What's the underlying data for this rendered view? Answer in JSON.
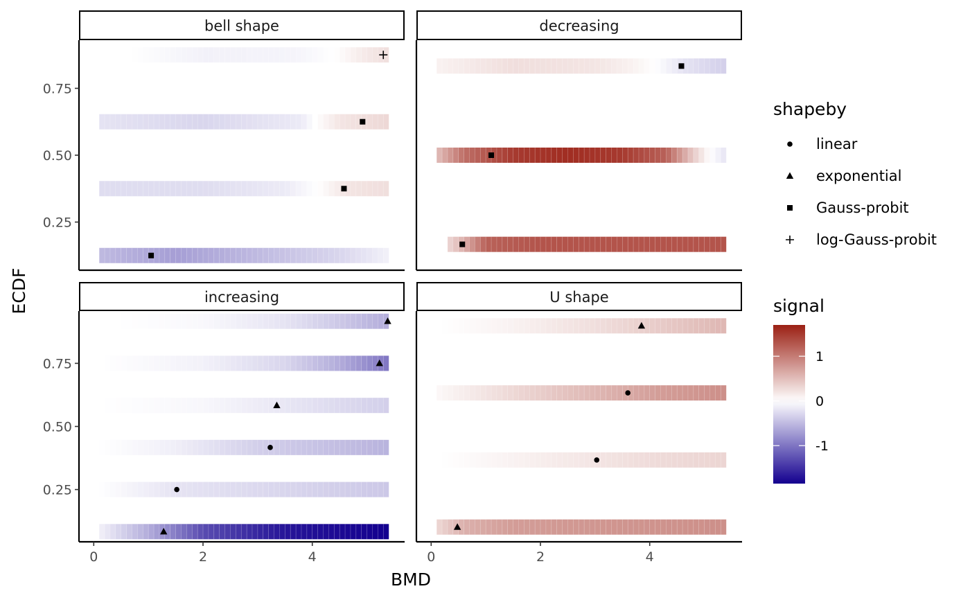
{
  "chart_data": {
    "type": "heatmap",
    "xlabel": "BMD",
    "ylabel": "ECDF",
    "xlim": [
      -0.27,
      5.69
    ],
    "x_ticks": [
      0,
      2,
      4
    ],
    "x_tick_labels": [
      "0",
      "2",
      "4"
    ],
    "y_ticks": [
      0.25,
      0.5,
      0.75
    ],
    "y_tick_labels": [
      "0.25",
      "0.50",
      "0.75"
    ],
    "grid": false,
    "panels": [
      {
        "title": "bell shape",
        "ylim": [
          0.07,
          0.93
        ],
        "rows": [
          {
            "ecdf": 0.125,
            "bmd": 1.05,
            "shape": "Gauss-probit",
            "x_start": 0.1,
            "x_end": 5.4,
            "signal": [
              [
                0.1,
                -0.5
              ],
              [
                1.5,
                -0.7
              ],
              [
                3.0,
                -0.5
              ],
              [
                4.5,
                -0.3
              ],
              [
                5.4,
                -0.1
              ]
            ]
          },
          {
            "ecdf": 0.375,
            "bmd": 4.58,
            "shape": "Gauss-probit",
            "x_start": 0.1,
            "x_end": 5.4,
            "signal": [
              [
                0.1,
                -0.25
              ],
              [
                2.0,
                -0.25
              ],
              [
                3.5,
                -0.15
              ],
              [
                4.1,
                0.0
              ],
              [
                4.6,
                0.2
              ],
              [
                5.4,
                0.25
              ]
            ]
          },
          {
            "ecdf": 0.625,
            "bmd": 4.92,
            "shape": "Gauss-probit",
            "x_start": 0.1,
            "x_end": 5.4,
            "signal": [
              [
                0.1,
                -0.2
              ],
              [
                2.0,
                -0.3
              ],
              [
                3.8,
                -0.15
              ],
              [
                4.05,
                0.0
              ],
              [
                4.5,
                0.2
              ],
              [
                5.4,
                0.3
              ]
            ]
          },
          {
            "ecdf": 0.875,
            "bmd": 5.3,
            "shape": "log-Gauss-probit",
            "x_start": 0.6,
            "x_end": 5.4,
            "signal": [
              [
                0.6,
                0.0
              ],
              [
                2.0,
                -0.1
              ],
              [
                3.7,
                -0.08
              ],
              [
                4.4,
                0.0
              ],
              [
                4.9,
                0.15
              ],
              [
                5.4,
                0.25
              ]
            ]
          }
        ]
      },
      {
        "title": "decreasing",
        "ylim": [
          0.07,
          0.93
        ],
        "rows": [
          {
            "ecdf": 0.1667,
            "bmd": 0.57,
            "shape": "Gauss-probit",
            "x_start": 0.3,
            "x_end": 5.4,
            "signal": [
              [
                0.3,
                0.3
              ],
              [
                0.6,
                0.6
              ],
              [
                1.0,
                1.2
              ],
              [
                2.0,
                1.3
              ],
              [
                3.5,
                1.3
              ],
              [
                5.4,
                1.3
              ]
            ]
          },
          {
            "ecdf": 0.5,
            "bmd": 1.1,
            "shape": "Gauss-probit",
            "x_start": 0.1,
            "x_end": 5.4,
            "signal": [
              [
                0.1,
                0.5
              ],
              [
                0.6,
                1.1
              ],
              [
                1.5,
                1.5
              ],
              [
                2.5,
                1.6
              ],
              [
                3.5,
                1.5
              ],
              [
                4.3,
                1.2
              ],
              [
                4.8,
                0.4
              ],
              [
                5.1,
                0.0
              ],
              [
                5.4,
                -0.2
              ]
            ]
          },
          {
            "ecdf": 0.8333,
            "bmd": 4.58,
            "shape": "Gauss-probit",
            "x_start": 0.1,
            "x_end": 5.4,
            "signal": [
              [
                0.1,
                0.1
              ],
              [
                1.5,
                0.25
              ],
              [
                3.0,
                0.2
              ],
              [
                3.7,
                0.1
              ],
              [
                4.1,
                0.0
              ],
              [
                4.6,
                -0.2
              ],
              [
                5.4,
                -0.35
              ]
            ]
          }
        ]
      },
      {
        "title": "increasing",
        "ylim": [
          0.043,
          0.957
        ],
        "rows": [
          {
            "ecdf": 0.0833,
            "bmd": 1.28,
            "shape": "exponential",
            "x_start": 0.1,
            "x_end": 5.4,
            "signal": [
              [
                0.1,
                -0.1
              ],
              [
                1.0,
                -0.6
              ],
              [
                2.0,
                -1.3
              ],
              [
                3.5,
                -1.7
              ],
              [
                5.4,
                -1.85
              ]
            ]
          },
          {
            "ecdf": 0.25,
            "bmd": 1.52,
            "shape": "linear",
            "x_start": 0.1,
            "x_end": 5.4,
            "signal": [
              [
                0.1,
                0.0
              ],
              [
                1.5,
                -0.2
              ],
              [
                3.5,
                -0.3
              ],
              [
                5.4,
                -0.4
              ]
            ]
          },
          {
            "ecdf": 0.4167,
            "bmd": 3.23,
            "shape": "linear",
            "x_start": 0.1,
            "x_end": 5.4,
            "signal": [
              [
                0.1,
                0.0
              ],
              [
                1.5,
                -0.12
              ],
              [
                3.0,
                -0.35
              ],
              [
                5.4,
                -0.55
              ]
            ]
          },
          {
            "ecdf": 0.5833,
            "bmd": 3.35,
            "shape": "exponential",
            "x_start": 0.1,
            "x_end": 5.4,
            "signal": [
              [
                0.1,
                0.0
              ],
              [
                2.0,
                -0.06
              ],
              [
                3.5,
                -0.18
              ],
              [
                5.4,
                -0.35
              ]
            ]
          },
          {
            "ecdf": 0.75,
            "bmd": 5.23,
            "shape": "exponential",
            "x_start": 0.1,
            "x_end": 5.4,
            "signal": [
              [
                0.1,
                0.0
              ],
              [
                2.0,
                -0.1
              ],
              [
                3.5,
                -0.3
              ],
              [
                4.5,
                -0.6
              ],
              [
                5.4,
                -1.0
              ]
            ]
          },
          {
            "ecdf": 0.9167,
            "bmd": 5.38,
            "shape": "exponential",
            "x_start": 0.4,
            "x_end": 5.4,
            "signal": [
              [
                0.4,
                0.0
              ],
              [
                2.0,
                -0.05
              ],
              [
                3.5,
                -0.2
              ],
              [
                4.5,
                -0.4
              ],
              [
                5.4,
                -0.6
              ]
            ]
          }
        ]
      },
      {
        "title": "U shape",
        "ylim": [
          0.07,
          0.93
        ],
        "rows": [
          {
            "ecdf": 0.125,
            "bmd": 0.48,
            "shape": "exponential",
            "x_start": 0.1,
            "x_end": 5.4,
            "signal": [
              [
                0.1,
                0.3
              ],
              [
                0.6,
                0.6
              ],
              [
                1.5,
                0.75
              ],
              [
                3.0,
                0.8
              ],
              [
                5.4,
                0.85
              ]
            ]
          },
          {
            "ecdf": 0.375,
            "bmd": 3.03,
            "shape": "linear",
            "x_start": 0.1,
            "x_end": 5.4,
            "signal": [
              [
                0.1,
                0.0
              ],
              [
                1.5,
                0.1
              ],
              [
                3.0,
                0.2
              ],
              [
                4.2,
                0.28
              ],
              [
                5.4,
                0.32
              ]
            ]
          },
          {
            "ecdf": 0.625,
            "bmd": 3.6,
            "shape": "linear",
            "x_start": 0.1,
            "x_end": 5.4,
            "signal": [
              [
                0.1,
                0.05
              ],
              [
                1.5,
                0.3
              ],
              [
                3.0,
                0.55
              ],
              [
                4.2,
                0.75
              ],
              [
                5.4,
                0.85
              ]
            ]
          },
          {
            "ecdf": 0.875,
            "bmd": 3.85,
            "shape": "exponential",
            "x_start": 0.1,
            "x_end": 5.4,
            "signal": [
              [
                0.1,
                0.0
              ],
              [
                1.5,
                0.1
              ],
              [
                3.0,
                0.25
              ],
              [
                4.2,
                0.4
              ],
              [
                5.4,
                0.55
              ]
            ]
          }
        ]
      }
    ],
    "legend": {
      "placement": "right",
      "shape": {
        "title": "shapeby",
        "items": [
          {
            "label": "linear",
            "symbol": "circle"
          },
          {
            "label": "exponential",
            "symbol": "triangle"
          },
          {
            "label": "Gauss-probit",
            "symbol": "square"
          },
          {
            "label": "log-Gauss-probit",
            "symbol": "plus"
          }
        ]
      },
      "signal": {
        "title": "signal",
        "range": [
          -1.85,
          1.7
        ],
        "ticks": [
          1,
          0,
          -1
        ],
        "tick_labels": [
          "1",
          "0",
          "-1"
        ],
        "colors": {
          "low": "#13008f",
          "mid": "#ffffff",
          "high": "#9b2014"
        }
      }
    }
  }
}
